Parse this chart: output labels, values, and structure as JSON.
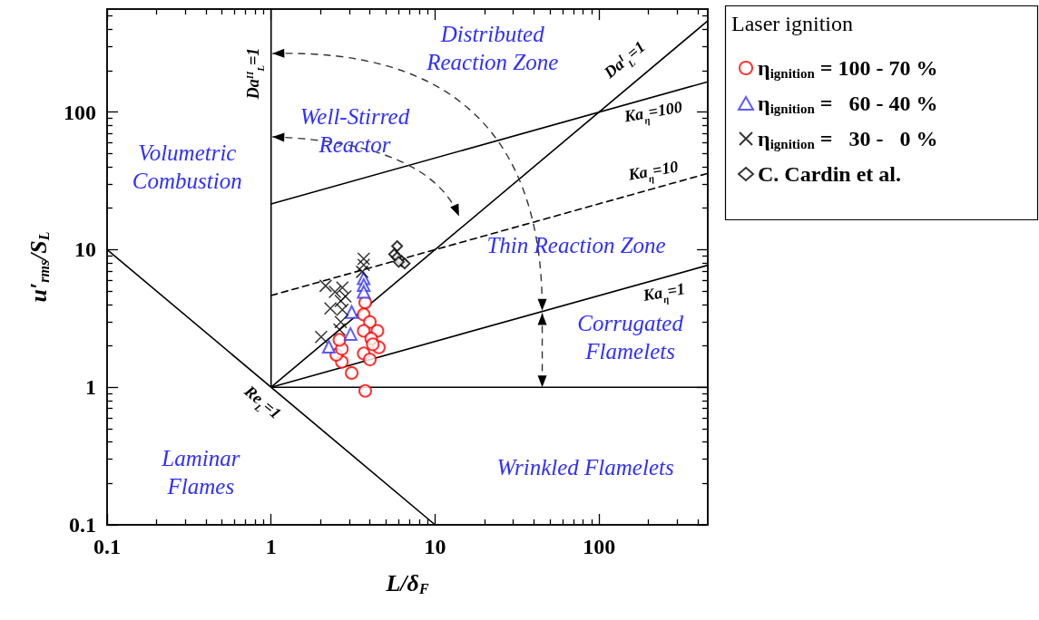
{
  "chart_data": {
    "type": "scatter",
    "xlabel": "L/δ$_{F}$",
    "ylabel": "u′$_{rms}$/S$_{L}$",
    "legend_title": "Laser ignition",
    "legend": "top right",
    "grid": false,
    "log": "xy",
    "xlim": [
      0.1,
      460
    ],
    "ylim": [
      0.1,
      560
    ],
    "xticks": [
      0.1,
      {
        "value": 0.2,
        "label": null
      },
      {
        "value": 0.3,
        "label": null
      },
      {
        "value": 0.4,
        "label": null
      },
      {
        "value": 0.5,
        "label": null
      },
      {
        "value": 0.6,
        "label": null
      },
      {
        "value": 0.7,
        "label": null
      },
      {
        "value": 0.8,
        "label": null
      },
      {
        "value": 0.9,
        "label": null
      },
      1,
      {
        "value": 2,
        "label": null
      },
      {
        "value": 3,
        "label": null
      },
      {
        "value": 4,
        "label": null
      },
      {
        "value": 5,
        "label": null
      },
      {
        "value": 6,
        "label": null
      },
      {
        "value": 7,
        "label": null
      },
      {
        "value": 8,
        "label": null
      },
      {
        "value": 9,
        "label": null
      },
      10,
      {
        "value": 20,
        "label": null
      },
      {
        "value": 30,
        "label": null
      },
      {
        "value": 40,
        "label": null
      },
      {
        "value": 50,
        "label": null
      },
      {
        "value": 60,
        "label": null
      },
      {
        "value": 70,
        "label": null
      },
      {
        "value": 80,
        "label": null
      },
      {
        "value": 90,
        "label": null
      },
      100,
      {
        "value": 200,
        "label": null
      },
      {
        "value": 300,
        "label": null
      },
      {
        "value": 400,
        "label": null
      }
    ],
    "yticks": [
      0.1,
      {
        "value": 0.2,
        "label": null
      },
      {
        "value": 0.3,
        "label": null
      },
      {
        "value": 0.4,
        "label": null
      },
      {
        "value": 0.5,
        "label": null
      },
      {
        "value": 0.6,
        "label": null
      },
      {
        "value": 0.7,
        "label": null
      },
      {
        "value": 0.8,
        "label": null
      },
      {
        "value": 0.9,
        "label": null
      },
      1,
      {
        "value": 2,
        "label": null
      },
      {
        "value": 3,
        "label": null
      },
      {
        "value": 4,
        "label": null
      },
      {
        "value": 5,
        "label": null
      },
      {
        "value": 6,
        "label": null
      },
      {
        "value": 7,
        "label": null
      },
      {
        "value": 8,
        "label": null
      },
      {
        "value": 9,
        "label": null
      },
      10,
      {
        "value": 20,
        "label": null
      },
      {
        "value": 30,
        "label": null
      },
      {
        "value": 40,
        "label": null
      },
      {
        "value": 50,
        "label": null
      },
      {
        "value": 60,
        "label": null
      },
      {
        "value": 70,
        "label": null
      },
      {
        "value": 80,
        "label": null
      },
      {
        "value": 90,
        "label": null
      },
      100,
      {
        "value": 200,
        "label": null
      },
      {
        "value": 300,
        "label": null
      },
      {
        "value": 400,
        "label": null
      },
      {
        "value": 500,
        "label": null
      }
    ],
    "series": [
      {
        "type": "line",
        "name": "Da$^{II}$$_{L}$=1",
        "color": "#000000",
        "line_style": "solid",
        "marker": "none",
        "x": [
          1,
          1
        ],
        "values": [
          1,
          560
        ]
      },
      {
        "type": "line",
        "name": "Da$^{I}$$_{L}$=1",
        "color": "#000000",
        "line_style": "solid",
        "marker": "none",
        "x": [
          1,
          460
        ],
        "values": [
          1,
          460
        ]
      },
      {
        "type": "line",
        "name": "Ka$_{η}$=100",
        "color": "#000000",
        "line_style": "solid",
        "marker": "none",
        "x": [
          1,
          460
        ],
        "values": [
          21.5,
          166
        ]
      },
      {
        "type": "line",
        "name": "Ka$_{η}$=10",
        "color": "#000000",
        "line_style": "dashed",
        "marker": "none",
        "x": [
          1,
          460
        ],
        "values": [
          4.64,
          35.8
        ]
      },
      {
        "type": "line",
        "name": "Ka$_{η}$=1",
        "color": "#000000",
        "line_style": "solid",
        "marker": "none",
        "x": [
          1,
          460
        ],
        "values": [
          1,
          7.7
        ]
      },
      {
        "type": "line",
        "color": "#000000",
        "line_style": "solid",
        "marker": "none",
        "x": [
          1,
          460
        ],
        "values": [
          1,
          1
        ]
      },
      {
        "type": "line",
        "name": "Re$_{L}$=1",
        "color": "#000000",
        "line_style": "solid",
        "marker": "none",
        "x": [
          0.1,
          10
        ],
        "values": [
          10,
          0.1
        ]
      },
      {
        "name": "η$_{ignition}$ = 100 - 70 %",
        "color": "#ff0000",
        "marker": "circle",
        "x": [
          3.75,
          3.1,
          2.7,
          2.5,
          2.7,
          2.61,
          3.75,
          3.67,
          4.0,
          4.45,
          3.67,
          4.08,
          4.54,
          4.17,
          3.67,
          4.0
        ],
        "values": [
          0.94,
          1.27,
          1.53,
          1.72,
          1.9,
          2.21,
          4.13,
          3.38,
          2.98,
          2.57,
          2.57,
          2.26,
          1.95,
          2.05,
          1.76,
          1.59
        ]
      },
      {
        "name": "η$_{ignition}$ =   60 - 40 %",
        "color": "#3333ff",
        "marker": "triangle",
        "x": [
          3.67,
          3.67,
          3.67,
          3.1,
          3.05,
          2.25
        ],
        "values": [
          6.18,
          5.53,
          4.93,
          3.52,
          2.44,
          1.97
        ]
      },
      {
        "name": "η$_{ignition}$ =   30 -   0 %",
        "color": "#000000",
        "marker": "cross",
        "x": [
          3.67,
          3.67,
          3.59,
          2.15,
          2.45,
          2.72,
          2.3,
          2.66,
          2.72,
          2.66,
          2.61,
          2.02,
          2.84
        ],
        "values": [
          8.57,
          7.74,
          6.9,
          5.45,
          4.93,
          5.3,
          3.74,
          4.24,
          3.65,
          2.98,
          2.63,
          2.32,
          4.57
        ]
      },
      {
        "name": "C. Cardin et al.",
        "color": "#000000",
        "marker": "diamond",
        "x": [
          5.87,
          5.63,
          5.87,
          6.25,
          6.52,
          6.0
        ],
        "values": [
          10.6,
          9.25,
          8.8,
          8.27,
          7.93,
          8.15
        ]
      }
    ],
    "annotations": [
      "Distributed\nReaction Zone",
      "Well-Stirred\nReactor",
      "Volumetric\nCombustion",
      "Thin Reaction Zone",
      "Corrugated\nFlamelets",
      "Wrinkled Flamelets",
      "Laminar\nFlames"
    ]
  }
}
